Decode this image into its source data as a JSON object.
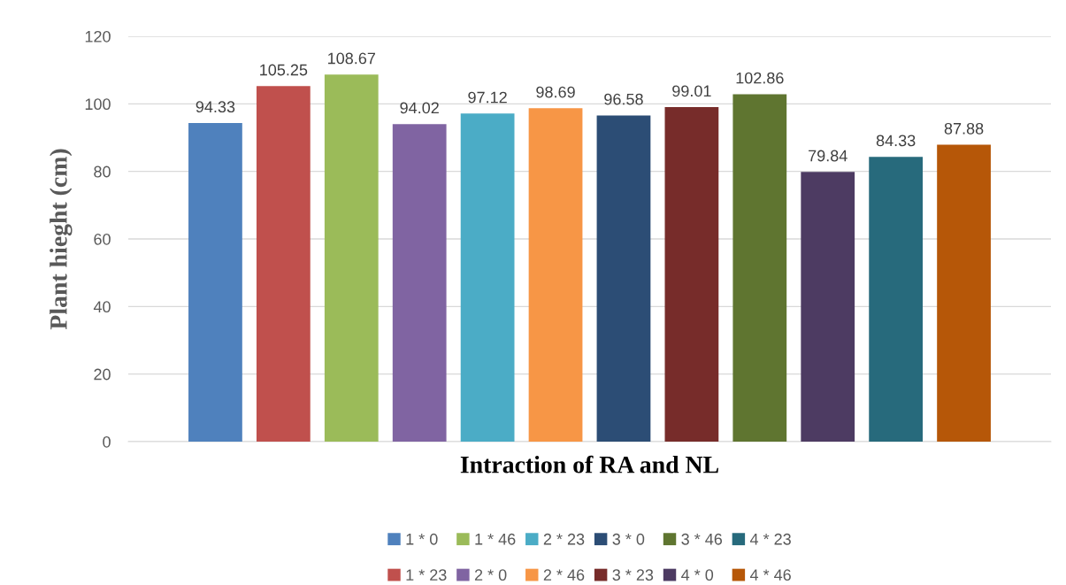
{
  "chart_data": {
    "type": "bar",
    "xlabel": "Intraction of RA and NL",
    "ylabel": "Plant hieght (cm)",
    "categories": [
      null
    ],
    "series": [
      {
        "name": "1 * 0",
        "color": "#4f81bd",
        "values": [
          94.33
        ]
      },
      {
        "name": "1 * 23",
        "color": "#c0504d",
        "values": [
          105.25
        ]
      },
      {
        "name": "1 * 46",
        "color": "#9bbb59",
        "values": [
          108.67
        ]
      },
      {
        "name": "2 * 0",
        "color": "#8064a2",
        "values": [
          94.02
        ]
      },
      {
        "name": "2 * 23",
        "color": "#4bacc6",
        "values": [
          97.12
        ]
      },
      {
        "name": "2 * 46",
        "color": "#f79646",
        "values": [
          98.69
        ]
      },
      {
        "name": "3 * 0",
        "color": "#2c4d75",
        "values": [
          96.58
        ]
      },
      {
        "name": "3 * 23",
        "color": "#772c2a",
        "values": [
          99.01
        ]
      },
      {
        "name": "3 * 46",
        "color": "#5f7530",
        "values": [
          102.86
        ]
      },
      {
        "name": "4 * 0",
        "color": "#4d3b62",
        "values": [
          79.84
        ]
      },
      {
        "name": "4 * 23",
        "color": "#276a7c",
        "values": [
          84.33
        ]
      },
      {
        "name": "4 * 46",
        "color": "#b65708",
        "values": [
          87.88
        ]
      }
    ],
    "ylim": [
      0,
      120
    ],
    "yticks": [
      0,
      20,
      40,
      60,
      80,
      100,
      120
    ],
    "grid": "y",
    "legend": "bottom",
    "data_labels": true
  }
}
